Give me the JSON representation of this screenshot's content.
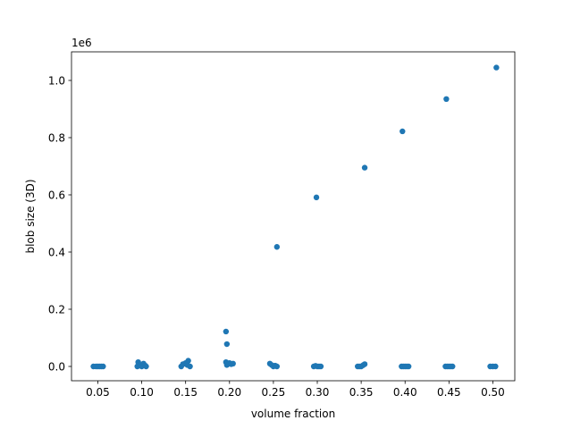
{
  "chart_data": {
    "type": "scatter",
    "title": "",
    "xlabel": "volume fraction",
    "ylabel": "blob size (3D)",
    "y_offset_label": "1e6",
    "xlim": [
      0.02,
      0.525
    ],
    "ylim": [
      -0.05,
      1.1
    ],
    "x_ticks": [
      0.05,
      0.1,
      0.15,
      0.2,
      0.25,
      0.3,
      0.35,
      0.4,
      0.45,
      0.5
    ],
    "x_tick_labels": [
      "0.05",
      "0.10",
      "0.15",
      "0.20",
      "0.25",
      "0.30",
      "0.35",
      "0.40",
      "0.45",
      "0.50"
    ],
    "y_ticks": [
      0.0,
      0.2,
      0.4,
      0.6,
      0.8,
      1.0
    ],
    "y_tick_labels": [
      "0.0",
      "0.2",
      "0.4",
      "0.6",
      "0.8",
      "1.0"
    ],
    "grid": false,
    "marker_color": "#1f77b4",
    "series": [
      {
        "x": [
          0.045,
          0.048,
          0.05,
          0.052,
          0.054,
          0.056,
          0.095,
          0.096,
          0.098,
          0.1,
          0.102,
          0.104,
          0.105,
          0.145,
          0.147,
          0.15,
          0.152,
          0.153,
          0.155,
          0.196,
          0.197,
          0.198,
          0.2,
          0.202,
          0.204,
          0.246,
          0.248,
          0.25,
          0.252,
          0.254,
          0.296,
          0.298,
          0.3,
          0.302,
          0.304,
          0.346,
          0.348,
          0.35,
          0.352,
          0.354,
          0.396,
          0.398,
          0.4,
          0.402,
          0.404,
          0.446,
          0.448,
          0.45,
          0.452,
          0.454,
          0.497,
          0.5,
          0.503,
          0.196,
          0.197,
          0.254,
          0.299,
          0.354,
          0.397,
          0.447,
          0.504
        ],
        "y": [
          0.0,
          0.0,
          0.0,
          0.0,
          0.0,
          0.0,
          0.0,
          0.015,
          0.005,
          0.0,
          0.01,
          0.003,
          0.0,
          0.0,
          0.008,
          0.012,
          0.005,
          0.02,
          0.0,
          0.015,
          0.005,
          0.01,
          0.012,
          0.008,
          0.01,
          0.01,
          0.005,
          0.0,
          0.003,
          0.0,
          0.0,
          0.002,
          0.0,
          0.0,
          0.0,
          0.0,
          0.0,
          0.0,
          0.004,
          0.008,
          0.0,
          0.0,
          0.0,
          0.0,
          0.0,
          0.0,
          0.0,
          0.0,
          0.0,
          0.0,
          0.0,
          0.0,
          0.0,
          0.122,
          0.078,
          0.418,
          0.591,
          0.695,
          0.822,
          0.935,
          1.045
        ]
      }
    ]
  }
}
